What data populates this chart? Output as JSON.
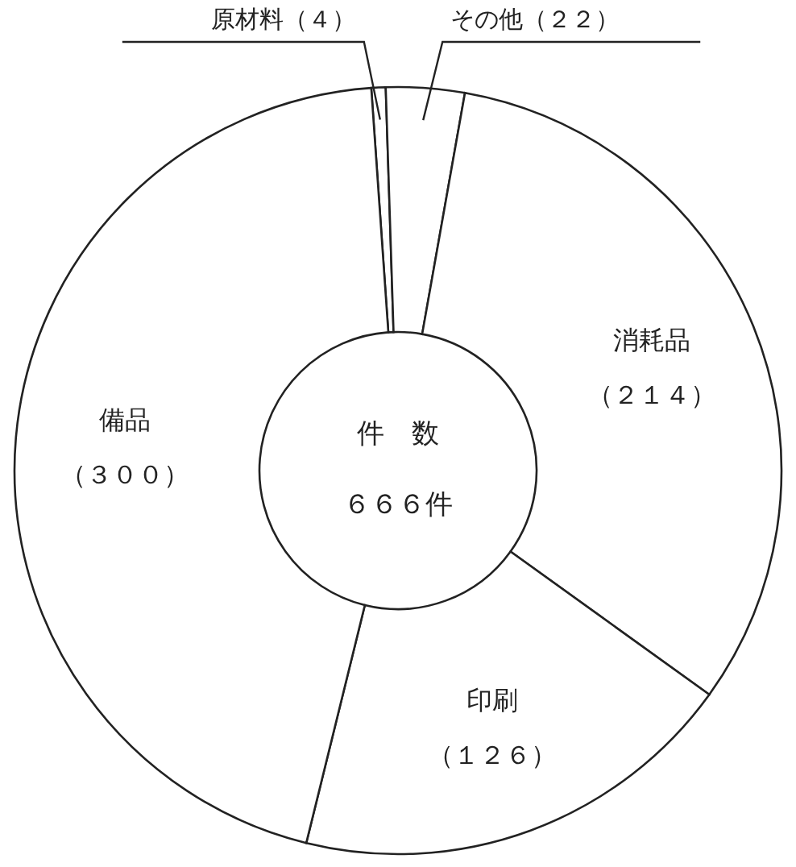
{
  "chart_data": {
    "type": "donut",
    "categories": [
      "原材料",
      "その他",
      "消耗品",
      "印刷",
      "備品"
    ],
    "values": [
      4,
      22,
      214,
      126,
      300
    ],
    "value_labels": [
      "（４）",
      "（２２）",
      "（２１４）",
      "（１２６）",
      "（３００）"
    ],
    "colors": [
      "#ffffff",
      "#ffffff",
      "#ffffff",
      "#ffffff",
      "#ffffff"
    ],
    "annotations": [
      "件　数",
      "６６６件"
    ]
  }
}
